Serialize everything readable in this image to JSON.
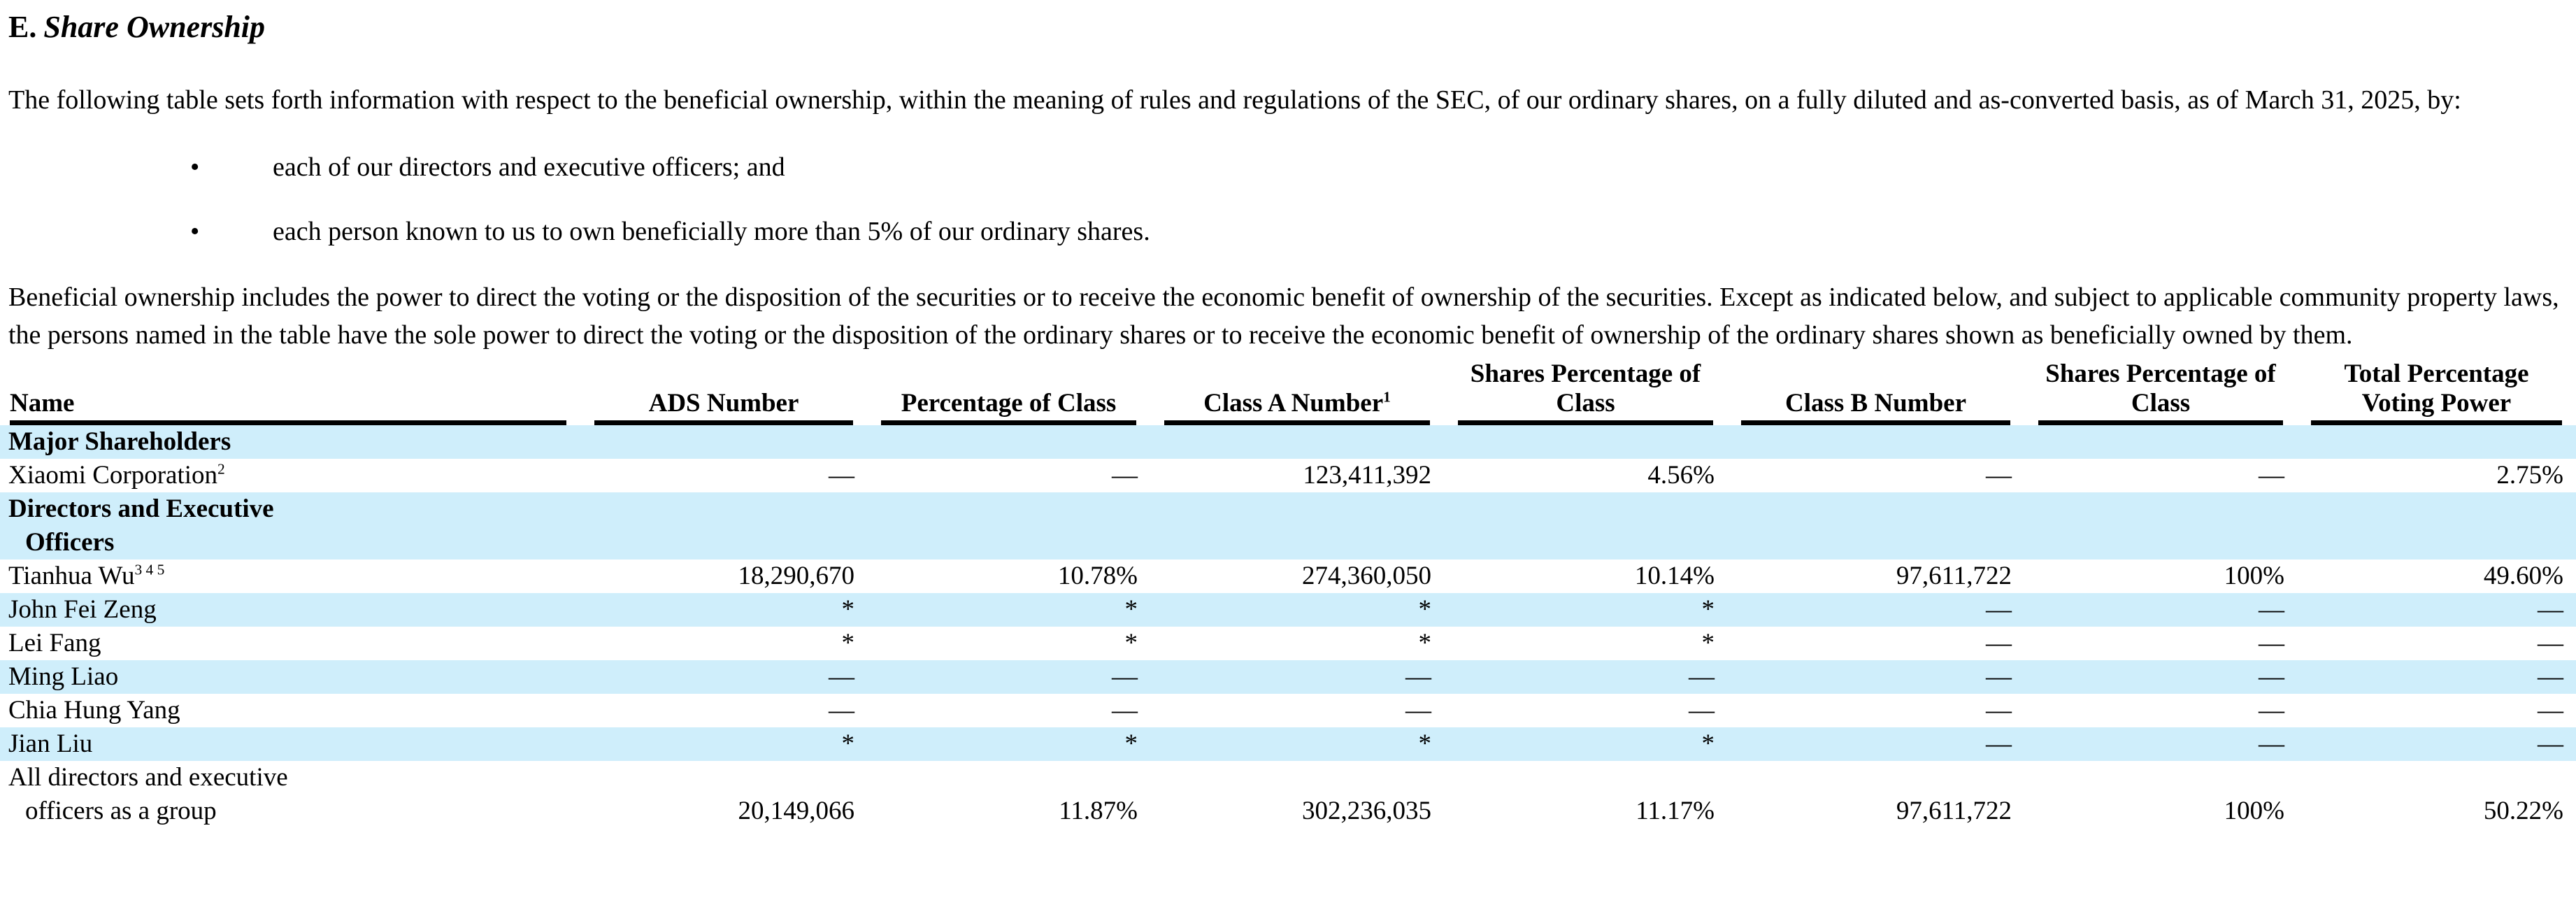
{
  "heading": {
    "letter": "E.",
    "title": "Share Ownership"
  },
  "paragraphs": {
    "intro": "The following table sets forth information with respect to the beneficial ownership, within the meaning of rules and regulations of the SEC, of our ordinary shares, on a fully diluted and as-converted basis, as of March 31, 2025, by:",
    "beneficial": "Beneficial ownership includes the power to direct the voting or the disposition of the securities or to receive the economic benefit of ownership of the securities. Except as indicated below, and subject to applicable community property laws, the persons named in the table have the sole power to direct the voting or the disposition of the ordinary shares or to receive the economic benefit of ownership of the ordinary shares shown as beneficially owned by them."
  },
  "bullets": [
    {
      "marker": "•",
      "text": "each of our directors and executive officers; and"
    },
    {
      "marker": "•",
      "text": "each person known to us to own beneficially more than 5% of our ordinary shares."
    }
  ],
  "table": {
    "columns": [
      {
        "label": "Name"
      },
      {
        "label": "ADS Number"
      },
      {
        "label": "Percentage of Class"
      },
      {
        "label": "Class A Number",
        "sup": "1"
      },
      {
        "label": "Shares Percentage of\nClass"
      },
      {
        "label": "Class B Number"
      },
      {
        "label": "Shares Percentage of\nClass"
      },
      {
        "label": "Total Percentage\nVoting Power"
      }
    ],
    "rows": [
      {
        "type": "section",
        "name": "Major Shareholders",
        "shaded": true
      },
      {
        "type": "data",
        "name": "Xiaomi Corporation",
        "sup": "2",
        "shaded": false,
        "values": [
          "—",
          "—",
          "123,411,392",
          "4.56%",
          "—",
          "—",
          "2.75%"
        ]
      },
      {
        "type": "section",
        "name": "Directors and Executive\nOfficers",
        "shaded": true
      },
      {
        "type": "data",
        "name": "Tianhua Wu",
        "sup": "3 4 5",
        "shaded": false,
        "values": [
          "18,290,670",
          "10.78%",
          "274,360,050",
          "10.14%",
          "97,611,722",
          "100%",
          "49.60%"
        ]
      },
      {
        "type": "data",
        "name": "John Fei Zeng",
        "shaded": true,
        "values": [
          "*",
          "*",
          "*",
          "*",
          "—",
          "—",
          "—"
        ]
      },
      {
        "type": "data",
        "name": "Lei Fang",
        "shaded": false,
        "values": [
          "*",
          "*",
          "*",
          "*",
          "—",
          "—",
          "—"
        ]
      },
      {
        "type": "data",
        "name": "Ming Liao",
        "shaded": true,
        "values": [
          "—",
          "—",
          "—",
          "—",
          "—",
          "—",
          "—"
        ]
      },
      {
        "type": "data",
        "name": "Chia Hung Yang",
        "shaded": false,
        "values": [
          "—",
          "—",
          "—",
          "—",
          "—",
          "—",
          "—"
        ]
      },
      {
        "type": "data",
        "name": "Jian Liu",
        "shaded": true,
        "values": [
          "*",
          "*",
          "*",
          "*",
          "—",
          "—",
          "—"
        ]
      },
      {
        "type": "data",
        "name": "All directors and executive\nofficers as a group",
        "shaded": false,
        "values": [
          "20,149,066",
          "11.87%",
          "302,236,035",
          "11.17%",
          "97,611,722",
          "100%",
          "50.22%"
        ]
      }
    ],
    "colors": {
      "shaded_row": "#cfeefb",
      "rule": "#000000",
      "text": "#000000"
    }
  }
}
